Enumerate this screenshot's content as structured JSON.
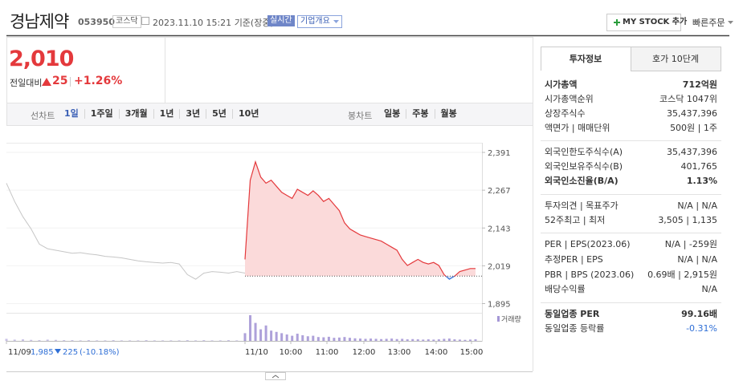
{
  "header": {
    "name": "경남제약",
    "code": "053950",
    "market": "코스닥",
    "datetime": "2023.11.10 15:21",
    "basis": "기준(장중)",
    "realtime": "실시간",
    "company_info": "기업개요",
    "my_stock": "MY STOCK 추가",
    "quick_order": "빠른주문"
  },
  "price": {
    "current": "2,010",
    "change_label": "전일대비",
    "change": "25",
    "rate": "+1.26%"
  },
  "chart_tabs": {
    "line_label": "선차트",
    "line_periods": [
      "1일",
      "1주일",
      "3개월",
      "1년",
      "3년",
      "5년",
      "10년"
    ],
    "selected": 0,
    "candle_label": "봉차트",
    "candle_periods": [
      "일봉",
      "주봉",
      "월봉"
    ]
  },
  "chart_data": {
    "type": "line",
    "ylim": [
      1870,
      2420
    ],
    "yticks": [
      {
        "value": 2391,
        "label": "2,391"
      },
      {
        "value": 2267,
        "label": "2,267"
      },
      {
        "value": 2143,
        "label": "2,143"
      },
      {
        "value": 2019,
        "label": "2,019"
      },
      {
        "value": 1895,
        "label": "1,895"
      }
    ],
    "series": [
      {
        "color": "#c6c6c6",
        "values": [
          2290,
          2230,
          2180,
          2140,
          2090,
          2075,
          2070,
          2065,
          2060,
          2062,
          2058,
          2055,
          2050,
          2048,
          2045,
          2040,
          2035,
          2032,
          2030,
          2028,
          2030,
          2025,
          1990,
          1975,
          1995,
          2000,
          1998,
          1995,
          2000,
          1995
        ]
      },
      {
        "color": "#e4393c",
        "down_color": "#2f6fd6",
        "fill": "#fbdada",
        "down_fill": "#d6e2f7",
        "values": [
          2040,
          2300,
          2360,
          2310,
          2290,
          2300,
          2280,
          2260,
          2250,
          2240,
          2270,
          2260,
          2250,
          2265,
          2250,
          2230,
          2240,
          2220,
          2200,
          2160,
          2140,
          2130,
          2120,
          2115,
          2110,
          2105,
          2100,
          2090,
          2080,
          2070,
          2040,
          2020,
          2030,
          2040,
          2030,
          2025,
          2030,
          2020,
          1990,
          1975,
          1985,
          2000,
          2005,
          2010,
          2010
        ]
      }
    ],
    "prev_close": {
      "value": 1985,
      "label": "1,985"
    },
    "prev_date": "11/09",
    "prev_change": "225",
    "prev_rate": "(-10.18%)",
    "time_labels": [
      "11/10",
      "10:00",
      "11:00",
      "12:00",
      "13:00",
      "14:00",
      "15:00"
    ],
    "volume": {
      "label": "거래량",
      "color": "#a597d6",
      "prev": [
        8,
        5,
        6,
        4,
        3,
        5,
        4,
        3,
        3,
        2,
        3,
        2,
        2,
        3,
        2,
        2,
        2,
        3,
        2,
        2,
        2,
        2,
        3,
        2,
        3,
        2,
        2,
        3,
        2,
        3
      ],
      "today": [
        30,
        100,
        70,
        45,
        60,
        40,
        35,
        30,
        25,
        20,
        28,
        22,
        18,
        20,
        15,
        14,
        16,
        12,
        13,
        15,
        12,
        10,
        9,
        8,
        9,
        8,
        7,
        8,
        9,
        7,
        8,
        6,
        7,
        6,
        5,
        6,
        5,
        6,
        8,
        9,
        6,
        5,
        4,
        5,
        6
      ]
    }
  },
  "info": {
    "tabs": [
      "투자정보",
      "호가 10단계"
    ],
    "groups": [
      [
        {
          "label": "시가총액",
          "value": "712억원",
          "bold": true
        },
        {
          "label": "시가총액순위",
          "value": "코스닥 1047위",
          "link": true
        },
        {
          "label": "상장주식수",
          "value": "35,437,396"
        },
        {
          "label": "액면가 | 매매단위",
          "value": "500원 | 1주"
        }
      ],
      [
        {
          "label": "외국인한도주식수(A)",
          "value": "35,437,396"
        },
        {
          "label": "외국인보유주식수(B)",
          "value": "401,765"
        },
        {
          "label": "외국인소진율(B/A)",
          "value": "1.13%",
          "bold": true,
          "help": true
        }
      ],
      [
        {
          "label": "투자의견 | 목표주가",
          "value": "N/A | N/A"
        },
        {
          "label": "52주최고 | 최저",
          "value": "3,505 | 1,135"
        }
      ],
      [
        {
          "label": "PER | EPS(2023.06)",
          "value": "N/A | -259원",
          "help": true
        },
        {
          "label": "추정PER | EPS",
          "value": "N/A | N/A",
          "help": true
        },
        {
          "label": "PBR | BPS (2023.06)",
          "value": "0.69배 | 2,915원",
          "help": true,
          "help_below": true
        },
        {
          "label": "배당수익률",
          "value": "N/A",
          "help": true
        }
      ],
      [
        {
          "label": "동일업종 PER",
          "value": "99.16배",
          "bold": true,
          "link": true
        },
        {
          "label": "동일업종 등락률",
          "value": "-0.31%",
          "link": true,
          "color": "#2f6fd6"
        }
      ]
    ]
  }
}
